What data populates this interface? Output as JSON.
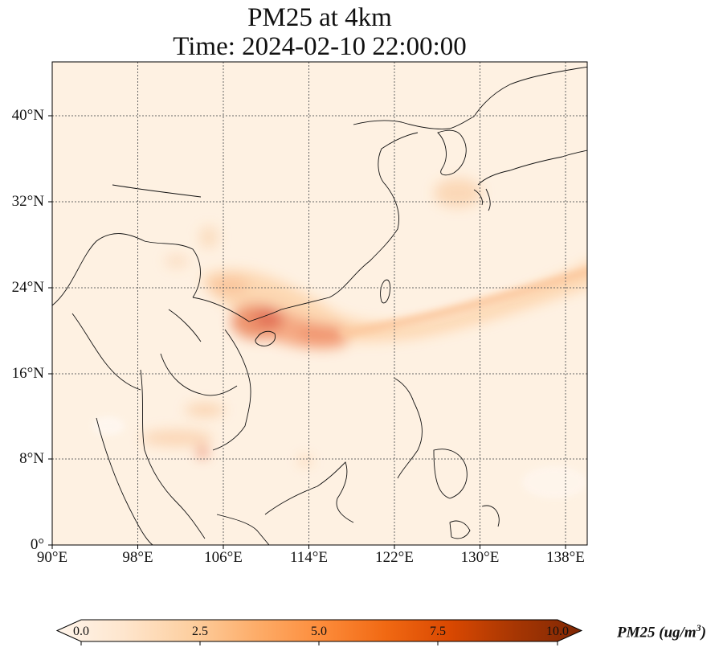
{
  "title_line1": "PM25 at 4km",
  "title_line2": "Time: 2024-02-10 22:00:00",
  "lat_labels": [
    "40°N",
    "32°N",
    "24°N",
    "16°N",
    "8°N",
    "0°"
  ],
  "lon_labels": [
    "90°E",
    "98°E",
    "106°E",
    "114°E",
    "122°E",
    "130°E",
    "138°E"
  ],
  "colorbar": {
    "ticks": [
      "0.0",
      "2.5",
      "5.0",
      "7.5",
      "10.0"
    ],
    "label_main": "PM25 (ug/m",
    "label_sup": "3",
    "label_end": ")",
    "min": 0,
    "max": 10,
    "colormap": [
      "#fff5eb",
      "#fee6ce",
      "#fdd0a2",
      "#fdae6b",
      "#fd8d3c",
      "#f16913",
      "#d94801",
      "#a63603",
      "#7f2704"
    ]
  },
  "map": {
    "extent_lon": [
      90,
      139.5
    ],
    "extent_lat": [
      0,
      45
    ],
    "gridlines": true
  }
}
